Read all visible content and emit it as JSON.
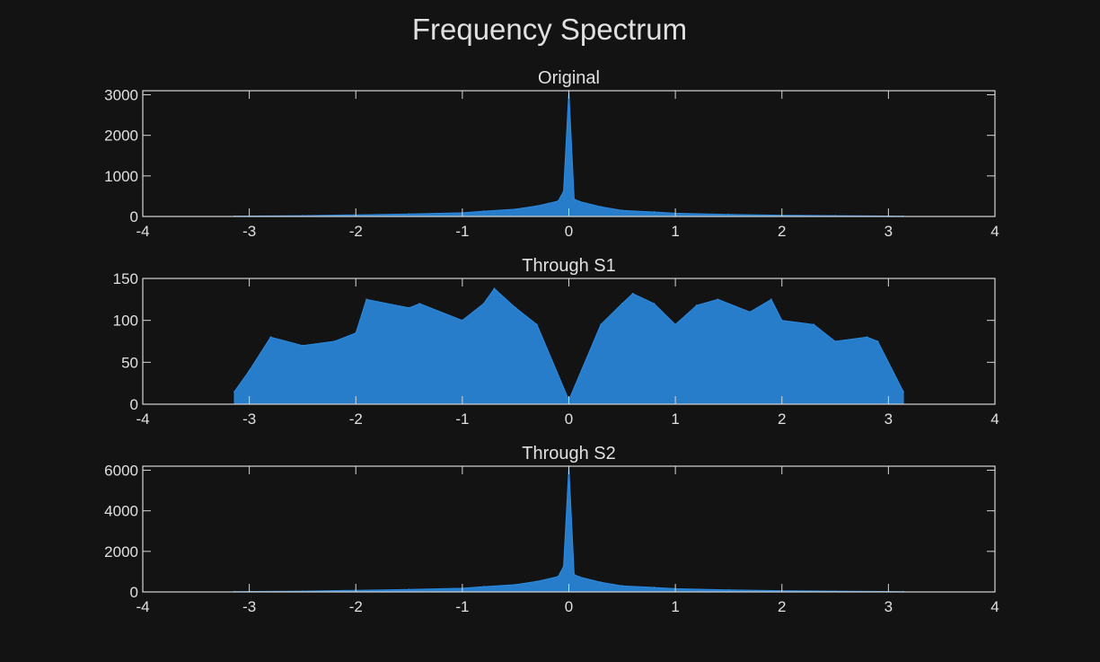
{
  "figure_title": "Frequency Spectrum",
  "colors": {
    "background": "#131313",
    "axes": "#d6d6d6",
    "text": "#e0e0e0",
    "series": "#2b8ae0"
  },
  "chart_data": [
    {
      "type": "line",
      "title": "Original",
      "xlabel": "",
      "ylabel": "",
      "xlim": [
        -4,
        4
      ],
      "ylim": [
        0,
        3100
      ],
      "xticks": [
        "-4",
        "-3",
        "-2",
        "-1",
        "0",
        "1",
        "2",
        "3",
        "4"
      ],
      "yticks": [
        "0",
        "1000",
        "2000",
        "3000"
      ],
      "ytick_values": [
        0,
        1000,
        2000,
        3000
      ],
      "grid": false,
      "series": [
        {
          "x": [
            -3.14,
            -3.0,
            -2.5,
            -2.0,
            -1.5,
            -1.0,
            -0.8,
            -0.5,
            -0.3,
            -0.1,
            -0.05,
            0,
            0.05,
            0.1,
            0.3,
            0.5,
            0.8,
            1.0,
            1.5,
            2.0,
            2.5,
            3.0,
            3.14
          ],
          "y": [
            8,
            10,
            20,
            40,
            60,
            90,
            130,
            180,
            260,
            380,
            620,
            3100,
            430,
            370,
            240,
            150,
            110,
            80,
            50,
            30,
            20,
            10,
            6
          ]
        }
      ]
    },
    {
      "type": "line",
      "title": "Through S1",
      "xlabel": "",
      "ylabel": "",
      "xlim": [
        -4,
        4
      ],
      "ylim": [
        0,
        150
      ],
      "xticks": [
        "-4",
        "-3",
        "-2",
        "-1",
        "0",
        "1",
        "2",
        "3",
        "4"
      ],
      "yticks": [
        "0",
        "50",
        "100",
        "150"
      ],
      "ytick_values": [
        0,
        50,
        100,
        150
      ],
      "grid": false,
      "series": [
        {
          "x": [
            -3.14,
            -3.0,
            -2.8,
            -2.5,
            -2.2,
            -2.0,
            -1.9,
            -1.5,
            -1.4,
            -1.0,
            -0.8,
            -0.7,
            -0.5,
            -0.3,
            0,
            0.3,
            0.5,
            0.6,
            0.8,
            1.0,
            1.2,
            1.4,
            1.7,
            1.9,
            2.0,
            2.3,
            2.5,
            2.8,
            2.9,
            3.14
          ],
          "y": [
            15,
            40,
            80,
            70,
            75,
            85,
            125,
            115,
            120,
            100,
            120,
            138,
            115,
            95,
            5,
            95,
            120,
            132,
            120,
            95,
            118,
            125,
            110,
            125,
            100,
            95,
            75,
            80,
            75,
            15
          ]
        }
      ]
    },
    {
      "type": "line",
      "title": "Through S2",
      "xlabel": "",
      "ylabel": "",
      "xlim": [
        -4,
        4
      ],
      "ylim": [
        0,
        6200
      ],
      "xticks": [
        "-4",
        "-3",
        "-2",
        "-1",
        "0",
        "1",
        "2",
        "3",
        "4"
      ],
      "yticks": [
        "0",
        "2000",
        "4000",
        "6000"
      ],
      "ytick_values": [
        0,
        2000,
        4000,
        6000
      ],
      "grid": false,
      "series": [
        {
          "x": [
            -3.14,
            -3.0,
            -2.5,
            -2.0,
            -1.5,
            -1.0,
            -0.8,
            -0.5,
            -0.3,
            -0.1,
            -0.05,
            0,
            0.05,
            0.1,
            0.3,
            0.5,
            0.8,
            1.0,
            1.5,
            2.0,
            2.5,
            3.0,
            3.14
          ],
          "y": [
            15,
            20,
            40,
            80,
            120,
            180,
            260,
            360,
            520,
            760,
            1250,
            6200,
            860,
            740,
            480,
            300,
            220,
            160,
            100,
            60,
            40,
            20,
            12
          ]
        }
      ]
    }
  ]
}
